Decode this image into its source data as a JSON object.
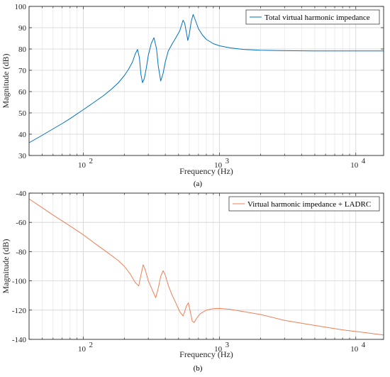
{
  "chart_data": [
    {
      "type": "line",
      "panel_caption": "(a)",
      "xlabel": "Frequency (Hz)",
      "ylabel": "Magnitude (dB)",
      "xscale": "log",
      "xlim": [
        40,
        16000
      ],
      "ylim": [
        30,
        100
      ],
      "xticks": [
        {
          "v": 100,
          "base": "10",
          "exp": "2"
        },
        {
          "v": 1000,
          "base": "10",
          "exp": "3"
        },
        {
          "v": 10000,
          "base": "10",
          "exp": "4"
        }
      ],
      "yticks": [
        30,
        40,
        50,
        60,
        70,
        80,
        90,
        100
      ],
      "grid": true,
      "legend_position": "top-right",
      "series": [
        {
          "name": "Total virtual harmonic impedance",
          "color": "#0072BD",
          "x": [
            40,
            50,
            60,
            70,
            80,
            100,
            120,
            140,
            160,
            180,
            200,
            215,
            230,
            240,
            250,
            258,
            265,
            272,
            280,
            290,
            300,
            315,
            330,
            345,
            355,
            370,
            385,
            400,
            420,
            450,
            480,
            510,
            540,
            555,
            570,
            585,
            600,
            620,
            640,
            660,
            700,
            750,
            800,
            900,
            1000,
            1200,
            1500,
            2000,
            3000,
            5000,
            10000,
            16000
          ],
          "y": [
            36,
            39.5,
            42.5,
            45,
            47.3,
            51.5,
            55,
            58,
            61,
            64,
            67.5,
            70.5,
            74,
            77.5,
            79.8,
            76,
            68,
            64.2,
            66,
            71,
            77,
            82.5,
            85.3,
            80,
            72,
            65,
            68.5,
            74,
            79,
            82.5,
            85.5,
            88.5,
            93.5,
            92,
            88,
            84,
            87,
            93,
            96.2,
            94,
            89.5,
            86.5,
            84.5,
            82.5,
            81.5,
            80.5,
            79.8,
            79.4,
            79.2,
            79.1,
            79.1,
            79.1
          ]
        }
      ]
    },
    {
      "type": "line",
      "panel_caption": "(b)",
      "xlabel": "Frequency (Hz)",
      "ylabel": "Magnitude (dB)",
      "xscale": "log",
      "xlim": [
        40,
        16000
      ],
      "ylim": [
        -140,
        -40
      ],
      "xticks": [
        {
          "v": 100,
          "base": "10",
          "exp": "2"
        },
        {
          "v": 1000,
          "base": "10",
          "exp": "3"
        },
        {
          "v": 10000,
          "base": "10",
          "exp": "4"
        }
      ],
      "yticks": [
        -140,
        -120,
        -100,
        -80,
        -60,
        -40
      ],
      "grid": true,
      "legend_position": "top-right",
      "series": [
        {
          "name": "Virtual harmonic impedance + LADRC",
          "color": "#EE7F57",
          "x": [
            40,
            50,
            60,
            80,
            100,
            120,
            150,
            180,
            200,
            220,
            240,
            255,
            265,
            275,
            285,
            300,
            320,
            340,
            355,
            370,
            385,
            400,
            420,
            450,
            480,
            510,
            540,
            555,
            570,
            590,
            610,
            630,
            650,
            680,
            720,
            800,
            900,
            1000,
            1200,
            1500,
            2000,
            3000,
            5000,
            8000,
            12000,
            16000
          ],
          "y": [
            -44,
            -50,
            -55,
            -62.5,
            -68.5,
            -74,
            -80.5,
            -86,
            -90,
            -95,
            -101,
            -103.5,
            -96,
            -89,
            -92.5,
            -100,
            -106,
            -111.5,
            -105,
            -97,
            -93,
            -96,
            -103,
            -110,
            -115.5,
            -121,
            -124,
            -121,
            -117.5,
            -115,
            -121,
            -127.5,
            -128.5,
            -125.5,
            -122.5,
            -120,
            -119,
            -118.8,
            -119.5,
            -121,
            -123,
            -127,
            -130.5,
            -133.5,
            -135.5,
            -137
          ]
        }
      ]
    }
  ]
}
